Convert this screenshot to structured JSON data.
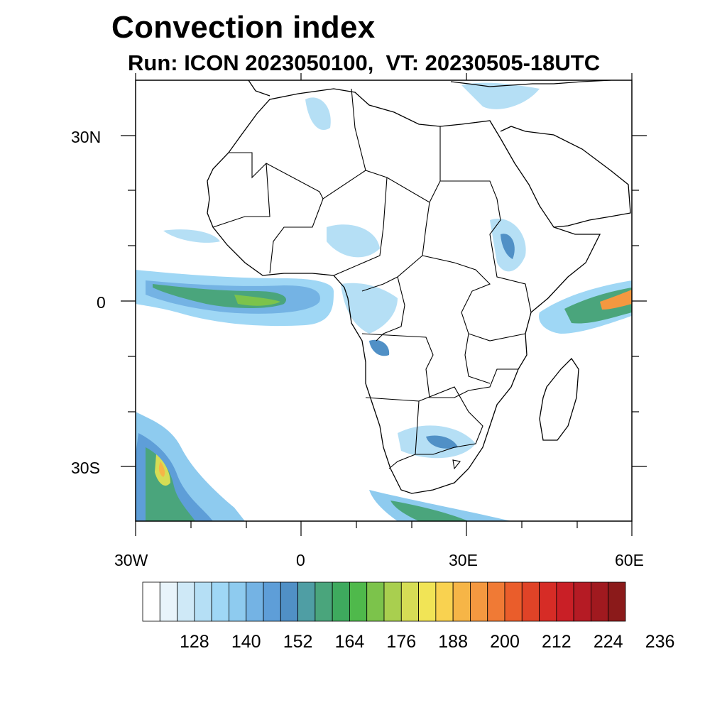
{
  "title": "Convection index",
  "subtitle": "Run: ICON 2023050100,  VT: 20230505-18UTC",
  "axes": {
    "lat_labels": [
      "30N",
      "0",
      "30S"
    ],
    "lon_labels": [
      "30W",
      "0",
      "30E",
      "60E"
    ]
  },
  "colorbar": {
    "labels": [
      "128",
      "140",
      "152",
      "164",
      "176",
      "188",
      "200",
      "212",
      "224",
      "236"
    ],
    "colors": [
      "#ffffff",
      "#e8f4fb",
      "#cfe9f7",
      "#b5dff5",
      "#9fd7f5",
      "#8ecbef",
      "#74b3e4",
      "#5e9ed8",
      "#5090c6",
      "#4f9ea4",
      "#4aa57c",
      "#3eaa5e",
      "#4fb94b",
      "#7cc34b",
      "#a9cf4f",
      "#d6dd55",
      "#f1e456",
      "#f9d250",
      "#f6b547",
      "#f49840",
      "#f07a35",
      "#ea5d2b",
      "#e04327",
      "#d62c26",
      "#c91f26",
      "#b51b24",
      "#a0191f",
      "#8b1a1a"
    ]
  }
}
